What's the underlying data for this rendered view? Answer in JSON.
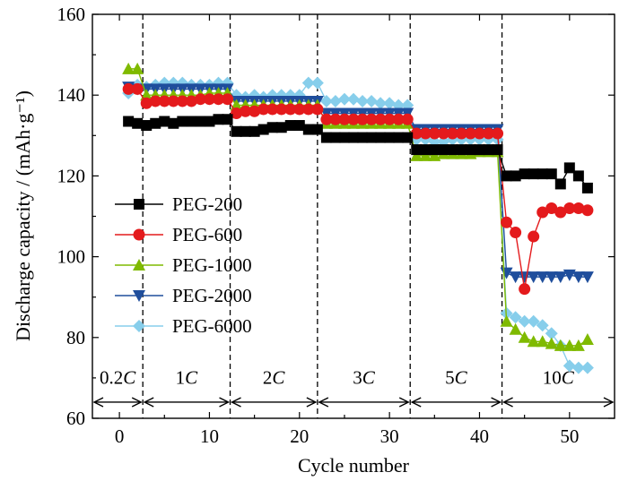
{
  "chart_data": {
    "type": "line",
    "title": "",
    "xlabel": "Cycle number",
    "ylabel": "Discharge capacity / (mAh·g⁻¹)",
    "xlim": [
      -3,
      55
    ],
    "ylim": [
      60,
      160
    ],
    "x_ticks": [
      0,
      10,
      20,
      30,
      40,
      50
    ],
    "y_ticks": [
      60,
      80,
      100,
      120,
      140,
      160
    ],
    "legend_position": "center-left",
    "grid": false,
    "region_boundaries": [
      2.6,
      12.3,
      22,
      32.3,
      42.5
    ],
    "regions": [
      {
        "label": "0.2C",
        "x_start": -3,
        "x_end": 2.6
      },
      {
        "label": "1C",
        "x_start": 2.6,
        "x_end": 12.3
      },
      {
        "label": "2C",
        "x_start": 12.3,
        "x_end": 22
      },
      {
        "label": "3C",
        "x_start": 22,
        "x_end": 32.3
      },
      {
        "label": "5C",
        "x_start": 32.3,
        "x_end": 42.5
      },
      {
        "label": "10C",
        "x_start": 42.5,
        "x_end": 55
      }
    ],
    "x": [
      1,
      2,
      3,
      4,
      5,
      6,
      7,
      8,
      9,
      10,
      11,
      12,
      13,
      14,
      15,
      16,
      17,
      18,
      19,
      20,
      21,
      22,
      23,
      24,
      25,
      26,
      27,
      28,
      29,
      30,
      31,
      32,
      33,
      34,
      35,
      36,
      37,
      38,
      39,
      40,
      41,
      42,
      43,
      44,
      45,
      46,
      47,
      48,
      49,
      50,
      51,
      52
    ],
    "series": [
      {
        "name": "PEG-200",
        "color": "#000000",
        "marker": "square",
        "values": [
          133.5,
          133,
          132.5,
          133,
          133.5,
          133,
          133.5,
          133.5,
          133.5,
          133.5,
          134,
          134,
          131,
          131,
          131,
          131.5,
          132,
          132,
          132.5,
          132.5,
          131.5,
          131.5,
          129.5,
          129.5,
          129.5,
          129.5,
          129.5,
          129.5,
          129.5,
          129.5,
          129.5,
          129.5,
          126.5,
          126.5,
          126.5,
          126.5,
          126.5,
          126.5,
          126.5,
          126.5,
          126.5,
          126.5,
          120,
          120,
          120.5,
          120.5,
          120.5,
          120.5,
          118,
          122,
          120,
          117
        ]
      },
      {
        "name": "PEG-600",
        "color": "#e41a1c",
        "marker": "circle",
        "values": [
          141.5,
          141.5,
          138,
          138.5,
          138.5,
          138.5,
          138.5,
          138.5,
          139,
          139,
          139,
          139,
          135.5,
          136,
          136,
          136.5,
          136.5,
          136.5,
          136.5,
          136.5,
          136.5,
          136.5,
          134,
          134,
          134,
          134,
          134,
          134,
          134,
          134,
          134,
          134,
          130.5,
          130.5,
          130.5,
          130.5,
          130.5,
          130.5,
          130.5,
          130.5,
          130.5,
          130.5,
          108.5,
          106,
          92,
          105,
          111,
          112,
          111,
          112,
          112,
          111.5
        ]
      },
      {
        "name": "PEG-1000",
        "color": "#7fba00",
        "marker": "triangle-up",
        "values": [
          146.5,
          146.5,
          140,
          140,
          140,
          140,
          140,
          140,
          140,
          140.5,
          140.5,
          140.5,
          137.5,
          137.5,
          137.5,
          137.5,
          137.5,
          137.5,
          137.5,
          137.5,
          137.5,
          137.5,
          133,
          133,
          133,
          133,
          133,
          133,
          133,
          133,
          133,
          133,
          125,
          125,
          125,
          125.5,
          125.5,
          125.5,
          125.5,
          126,
          126,
          126,
          84,
          82,
          80,
          79,
          79,
          78.5,
          78,
          78,
          78,
          79.5
        ]
      },
      {
        "name": "PEG-2000",
        "color": "#1f4e9c",
        "marker": "triangle-down",
        "values": [
          142,
          141.5,
          141.5,
          141.5,
          141.5,
          141.5,
          141.5,
          141.5,
          141.5,
          141.5,
          141.5,
          141.5,
          138.5,
          138.5,
          138.5,
          138.5,
          138.5,
          138.5,
          138.5,
          138.5,
          138.5,
          138.5,
          135.5,
          135.5,
          135.5,
          135.5,
          135.5,
          135.5,
          135.5,
          135.5,
          135.5,
          135.5,
          131.5,
          131.5,
          131.5,
          131.5,
          131.5,
          131.5,
          131.5,
          131.5,
          131.5,
          131.5,
          96,
          95,
          95,
          95,
          95,
          95,
          95,
          95.5,
          95,
          95
        ]
      },
      {
        "name": "PEG-6000",
        "color": "#87ceeb",
        "marker": "diamond",
        "values": [
          140.5,
          142.5,
          142,
          142.5,
          143,
          143,
          143,
          142.5,
          142.5,
          142.5,
          143,
          143,
          140,
          139.5,
          140,
          139.5,
          140,
          140,
          140,
          140,
          143,
          143,
          138.5,
          138.5,
          139,
          139,
          138.5,
          138.5,
          138,
          138,
          137.5,
          137.5,
          129,
          129,
          128.5,
          128.5,
          129,
          129,
          129,
          129,
          129,
          129,
          86,
          85,
          84,
          84,
          83,
          81,
          78,
          73,
          72.5,
          72.5
        ]
      }
    ]
  }
}
